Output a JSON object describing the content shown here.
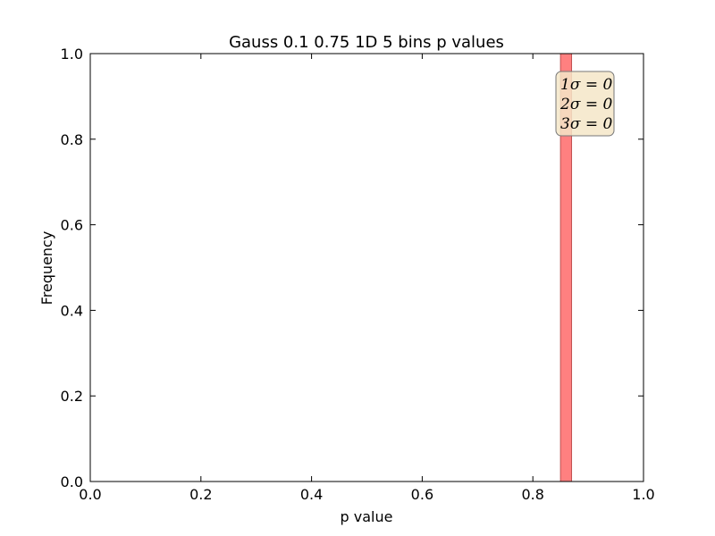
{
  "chart_data": {
    "type": "bar",
    "title": "Gauss 0.1 0.75 1D 5 bins p values",
    "xlabel": "p value",
    "ylabel": "Frequency",
    "xlim": [
      0.0,
      1.0
    ],
    "ylim": [
      0.0,
      1.0
    ],
    "x_ticks": [
      "0.0",
      "0.2",
      "0.4",
      "0.6",
      "0.8",
      "1.0"
    ],
    "y_ticks": [
      "0.0",
      "0.2",
      "0.4",
      "0.6",
      "0.8",
      "1.0"
    ],
    "bars": [
      {
        "x_start": 0.85,
        "x_end": 0.87,
        "value": 1.0
      }
    ],
    "bar_color": "#ff8080",
    "bar_edge_color": "#c05050",
    "grid": false,
    "annotation": {
      "lines": [
        "1σ = 0",
        "2σ = 0",
        "3σ = 0"
      ],
      "background": "#f5e6c8",
      "placement": "top-right"
    }
  }
}
